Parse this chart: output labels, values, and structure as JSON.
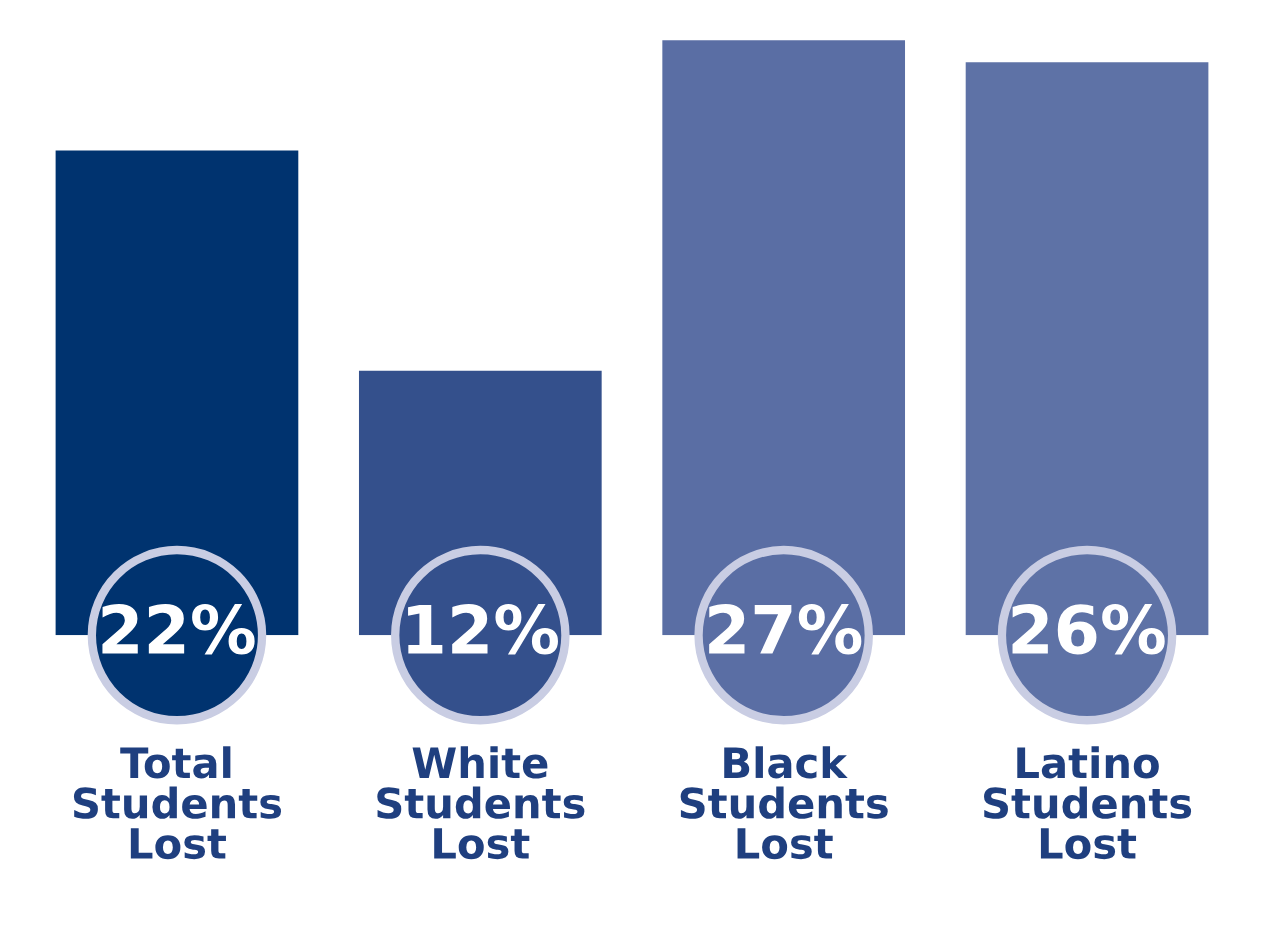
{
  "chart_data": {
    "type": "bar",
    "categories": [
      "Total Students Lost",
      "White Students Lost",
      "Black Students Lost",
      "Latino Students Lost"
    ],
    "values": [
      22,
      12,
      27,
      26
    ],
    "colors": [
      "#00336f",
      "#34508c",
      "#5a6ea4",
      "#5e72a6"
    ],
    "value_labels": [
      "22%",
      "12%",
      "27%",
      "26%"
    ],
    "grid": false,
    "legend": false
  }
}
